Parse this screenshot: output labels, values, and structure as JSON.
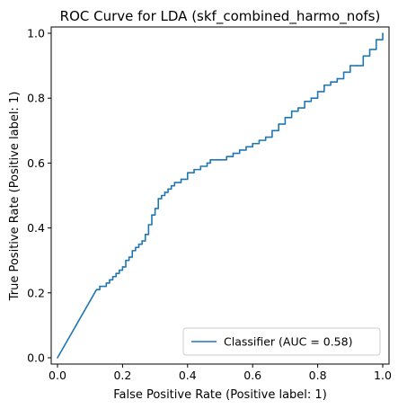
{
  "chart_data": {
    "type": "line",
    "title": "ROC Curve for LDA (skf_combined_harmo_nofs)",
    "xlabel": "False Positive Rate (Positive label: 1)",
    "ylabel": "True Positive Rate (Positive label: 1)",
    "xlim": [
      0,
      1
    ],
    "ylim": [
      0,
      1
    ],
    "xticks": [
      "0.0",
      "0.2",
      "0.4",
      "0.6",
      "0.8",
      "1.0"
    ],
    "yticks": [
      "0.0",
      "0.2",
      "0.4",
      "0.6",
      "0.8",
      "1.0"
    ],
    "grid": false,
    "legend_position": "lower-right",
    "series": [
      {
        "name": "Classifier (AUC = 0.58)",
        "color": "#1f77b4",
        "x": [
          0.0,
          0.12,
          0.13,
          0.15,
          0.16,
          0.17,
          0.18,
          0.19,
          0.2,
          0.21,
          0.22,
          0.23,
          0.24,
          0.25,
          0.26,
          0.27,
          0.28,
          0.29,
          0.3,
          0.31,
          0.32,
          0.33,
          0.34,
          0.35,
          0.36,
          0.38,
          0.4,
          0.42,
          0.44,
          0.46,
          0.47,
          0.5,
          0.52,
          0.54,
          0.56,
          0.58,
          0.6,
          0.62,
          0.64,
          0.66,
          0.68,
          0.7,
          0.72,
          0.74,
          0.76,
          0.78,
          0.8,
          0.82,
          0.84,
          0.86,
          0.88,
          0.9,
          0.92,
          0.94,
          0.96,
          0.98,
          1.0
        ],
        "y": [
          0.0,
          0.21,
          0.22,
          0.23,
          0.24,
          0.25,
          0.26,
          0.27,
          0.28,
          0.3,
          0.31,
          0.33,
          0.34,
          0.35,
          0.36,
          0.38,
          0.41,
          0.44,
          0.46,
          0.49,
          0.5,
          0.51,
          0.52,
          0.53,
          0.54,
          0.55,
          0.57,
          0.58,
          0.59,
          0.6,
          0.61,
          0.61,
          0.62,
          0.63,
          0.64,
          0.65,
          0.66,
          0.67,
          0.68,
          0.7,
          0.72,
          0.74,
          0.76,
          0.77,
          0.79,
          0.8,
          0.82,
          0.84,
          0.85,
          0.86,
          0.88,
          0.9,
          0.9,
          0.93,
          0.95,
          0.98,
          1.0
        ]
      }
    ]
  }
}
